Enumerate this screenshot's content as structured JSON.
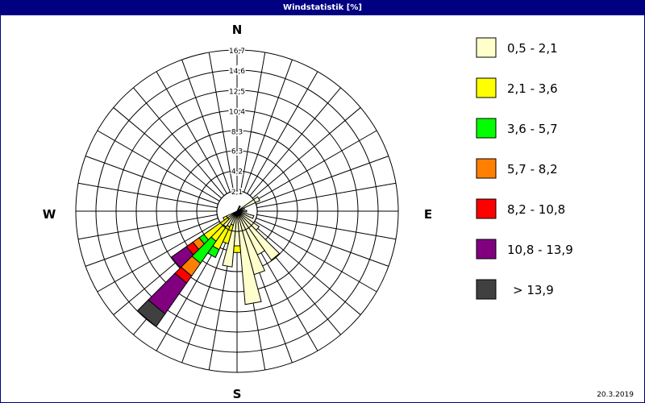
{
  "window": {
    "title": "Windstatistik [%]",
    "date": "20.3.2019"
  },
  "chart_data": {
    "type": "wind-rose",
    "title": "Windstatistik [%]",
    "unit": "%",
    "radial_max": 16.7,
    "radial_ticks": [
      "2,1",
      "4,2",
      "6,3",
      "8,3",
      "10,4",
      "12,5",
      "14,6",
      "16,7"
    ],
    "radial_tick_values": [
      2.1,
      4.2,
      6.3,
      8.3,
      10.4,
      12.5,
      14.6,
      16.7
    ],
    "grid_rings": 8,
    "grid_spokes": 36,
    "calm_ring": 2.1,
    "compass": {
      "north": "N",
      "east": "E",
      "south": "S",
      "west": "W"
    },
    "legend": [
      {
        "label": "0,5 - 2,1",
        "color": "#ffffcc"
      },
      {
        "label": "2,1 - 3,6",
        "color": "#ffff00"
      },
      {
        "label": "3,6 - 5,7",
        "color": "#00ff00"
      },
      {
        "label": "5,7 - 8,2",
        "color": "#ff8000"
      },
      {
        "label": "8,2 - 10,8",
        "color": "#ff0000"
      },
      {
        "label": "10,8 - 13,9",
        "color": "#800080"
      },
      {
        "label": "> 13,9",
        "color": "#404040"
      }
    ],
    "sector_width_deg": 10,
    "sectors": [
      {
        "direction": 30,
        "segments": [
          0.6
        ]
      },
      {
        "direction": 60,
        "segments": [
          2.6
        ]
      },
      {
        "direction": 70,
        "segments": [
          0.8
        ]
      },
      {
        "direction": 90,
        "segments": [
          1.0
        ]
      },
      {
        "direction": 110,
        "segments": [
          1.8
        ]
      },
      {
        "direction": 130,
        "segments": [
          2.8
        ]
      },
      {
        "direction": 140,
        "segments": [
          6.2
        ]
      },
      {
        "direction": 150,
        "segments": [
          5.0
        ]
      },
      {
        "direction": 160,
        "segments": [
          6.8
        ]
      },
      {
        "direction": 170,
        "segments": [
          9.7
        ]
      },
      {
        "direction": 180,
        "segments": [
          3.6,
          0.7
        ]
      },
      {
        "direction": 190,
        "segments": [
          5.8
        ]
      },
      {
        "direction": 200,
        "segments": [
          1.5,
          2.0
        ]
      },
      {
        "direction": 210,
        "segments": [
          1.8,
          2.6,
          0.9
        ]
      },
      {
        "direction": 220,
        "segments": [
          2.0,
          1.8,
          2.8,
          1.6,
          0.9,
          3.9,
          1.6
        ]
      },
      {
        "direction": 230,
        "segments": [
          1.2,
          3.0,
          0.6,
          0.8,
          0.8,
          1.9
        ]
      },
      {
        "direction": 240,
        "segments": [
          1.2,
          0.4
        ]
      }
    ]
  }
}
